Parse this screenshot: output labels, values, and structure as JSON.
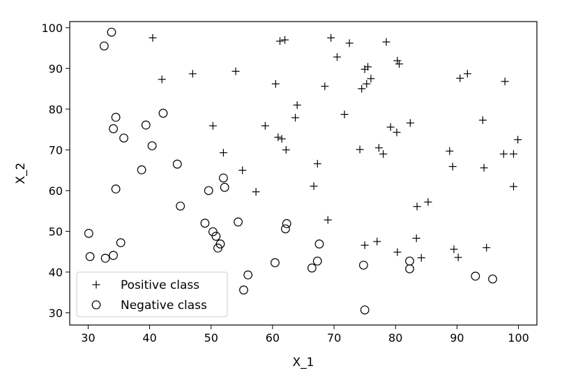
{
  "chart_data": {
    "type": "scatter",
    "title": "",
    "xlabel": "X_1",
    "ylabel": "X_2",
    "xlim": [
      27,
      103
    ],
    "ylim": [
      27,
      101.5
    ],
    "xticks": [
      30,
      40,
      50,
      60,
      70,
      80,
      90,
      100
    ],
    "yticks": [
      30,
      40,
      50,
      60,
      70,
      80,
      90,
      100
    ],
    "grid": false,
    "legend_position": "lower-left",
    "series": [
      {
        "name": "Positive class",
        "marker": "plus",
        "color": "#000000",
        "points": [
          [
            40.5,
            97.5
          ],
          [
            61.2,
            96.7
          ],
          [
            62.0,
            97.0
          ],
          [
            69.5,
            97.5
          ],
          [
            72.5,
            96.2
          ],
          [
            78.5,
            96.5
          ],
          [
            42.0,
            87.3
          ],
          [
            47.0,
            88.7
          ],
          [
            54.0,
            89.3
          ],
          [
            70.5,
            92.8
          ],
          [
            75.0,
            89.8
          ],
          [
            75.5,
            90.4
          ],
          [
            80.3,
            91.9
          ],
          [
            80.6,
            91.1
          ],
          [
            90.5,
            87.6
          ],
          [
            91.7,
            88.7
          ],
          [
            97.8,
            86.8
          ],
          [
            60.5,
            86.2
          ],
          [
            68.5,
            85.6
          ],
          [
            74.5,
            85.0
          ],
          [
            75.3,
            86.2
          ],
          [
            76.0,
            87.5
          ],
          [
            64.0,
            81.0
          ],
          [
            63.7,
            77.9
          ],
          [
            71.7,
            78.7
          ],
          [
            50.3,
            75.9
          ],
          [
            58.8,
            75.9
          ],
          [
            60.9,
            73.1
          ],
          [
            61.5,
            72.7
          ],
          [
            62.2,
            70.0
          ],
          [
            52.0,
            69.3
          ],
          [
            74.2,
            70.1
          ],
          [
            77.3,
            70.5
          ],
          [
            78.0,
            69.0
          ],
          [
            79.2,
            75.6
          ],
          [
            80.2,
            74.3
          ],
          [
            82.4,
            76.6
          ],
          [
            88.8,
            69.7
          ],
          [
            89.3,
            65.9
          ],
          [
            94.2,
            77.3
          ],
          [
            94.4,
            65.6
          ],
          [
            97.6,
            69.0
          ],
          [
            99.2,
            69.0
          ],
          [
            99.9,
            72.5
          ],
          [
            99.2,
            61.0
          ],
          [
            67.3,
            66.6
          ],
          [
            66.7,
            61.1
          ],
          [
            55.1,
            65.0
          ],
          [
            57.3,
            59.7
          ],
          [
            69.0,
            52.8
          ],
          [
            83.5,
            56.1
          ],
          [
            85.3,
            57.2
          ],
          [
            75.0,
            46.6
          ],
          [
            77.0,
            47.5
          ],
          [
            80.3,
            44.9
          ],
          [
            83.4,
            48.3
          ],
          [
            84.2,
            43.5
          ],
          [
            89.5,
            45.6
          ],
          [
            90.2,
            43.6
          ],
          [
            94.8,
            46.0
          ]
        ]
      },
      {
        "name": "Negative class",
        "marker": "circle",
        "color": "#000000",
        "points": [
          [
            33.8,
            98.9
          ],
          [
            32.6,
            95.5
          ],
          [
            34.5,
            78.0
          ],
          [
            34.1,
            75.2
          ],
          [
            35.8,
            72.9
          ],
          [
            39.4,
            76.1
          ],
          [
            40.4,
            71.0
          ],
          [
            42.2,
            79.0
          ],
          [
            38.7,
            65.1
          ],
          [
            44.5,
            66.5
          ],
          [
            34.5,
            60.4
          ],
          [
            45.0,
            56.2
          ],
          [
            49.6,
            60.0
          ],
          [
            52.0,
            63.1
          ],
          [
            52.2,
            60.8
          ],
          [
            30.1,
            49.5
          ],
          [
            35.3,
            47.2
          ],
          [
            49.0,
            52.0
          ],
          [
            50.3,
            49.9
          ],
          [
            50.8,
            48.8
          ],
          [
            51.5,
            46.9
          ],
          [
            51.1,
            45.9
          ],
          [
            54.4,
            52.3
          ],
          [
            62.1,
            50.6
          ],
          [
            62.3,
            51.9
          ],
          [
            30.3,
            43.8
          ],
          [
            32.8,
            43.4
          ],
          [
            34.1,
            44.1
          ],
          [
            56.0,
            39.3
          ],
          [
            55.3,
            35.6
          ],
          [
            60.4,
            42.3
          ],
          [
            66.4,
            41.0
          ],
          [
            67.3,
            42.7
          ],
          [
            67.6,
            46.9
          ],
          [
            74.8,
            41.7
          ],
          [
            75.0,
            30.7
          ],
          [
            82.3,
            42.7
          ],
          [
            82.3,
            40.8
          ],
          [
            93.0,
            39.0
          ],
          [
            95.8,
            38.3
          ]
        ]
      }
    ]
  }
}
